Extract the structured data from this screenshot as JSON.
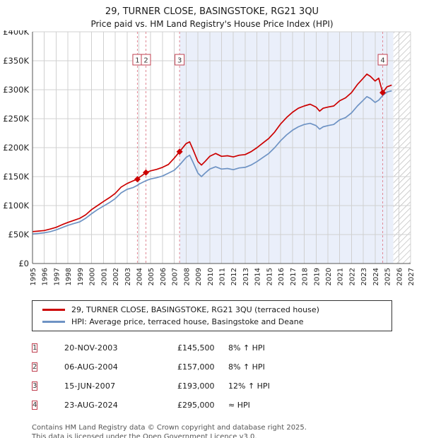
{
  "header": {
    "title": "29, TURNER CLOSE, BASINGSTOKE, RG21 3QU",
    "subtitle": "Price paid vs. HM Land Registry's House Price Index (HPI)"
  },
  "chart_data": {
    "type": "line",
    "xlim": [
      1995,
      2027
    ],
    "ylim": [
      0,
      400000
    ],
    "x_ticks": [
      1995,
      1996,
      1997,
      1998,
      1999,
      2000,
      2001,
      2002,
      2003,
      2004,
      2005,
      2006,
      2007,
      2008,
      2009,
      2010,
      2011,
      2012,
      2013,
      2014,
      2015,
      2016,
      2017,
      2018,
      2019,
      2020,
      2021,
      2022,
      2023,
      2024,
      2025,
      2026,
      2027
    ],
    "y_ticks": [
      0,
      50000,
      100000,
      150000,
      200000,
      250000,
      300000,
      350000,
      400000
    ],
    "y_tick_labels": [
      "£0",
      "£50K",
      "£100K",
      "£150K",
      "£200K",
      "£250K",
      "£300K",
      "£350K",
      "£400K"
    ],
    "grid": true,
    "grid_color": "#d0d0d0",
    "shaded_region": {
      "from": 2007.45,
      "to": 2025.55,
      "color": "#eaeffa"
    },
    "hatched_region": {
      "from": 2025.55,
      "to": 2027,
      "line_color": "#b0b0b0"
    },
    "sale_line_color": "#e08894",
    "marker_color": "#cc0000",
    "x": [
      1995,
      1995.5,
      1996,
      1996.5,
      1997,
      1997.5,
      1998,
      1998.5,
      1999,
      1999.5,
      2000,
      2000.5,
      2001,
      2001.5,
      2002,
      2002.5,
      2003,
      2003.5,
      2003.88,
      2004,
      2004.6,
      2005,
      2005.5,
      2006,
      2006.5,
      2007,
      2007.45,
      2008,
      2008.3,
      2008.6,
      2009,
      2009.3,
      2009.6,
      2010,
      2010.5,
      2011,
      2011.5,
      2012,
      2012.5,
      2013,
      2013.5,
      2014,
      2014.5,
      2015,
      2015.5,
      2016,
      2016.5,
      2017,
      2017.5,
      2018,
      2018.5,
      2019,
      2019.3,
      2019.6,
      2020,
      2020.5,
      2021,
      2021.5,
      2022,
      2022.5,
      2023,
      2023.3,
      2023.6,
      2024,
      2024.3,
      2024.64,
      2025,
      2025.4
    ],
    "series": [
      {
        "name": "29, TURNER CLOSE, BASINGSTOKE, RG21 3QU (terraced house)",
        "color": "#cc0000",
        "values": [
          55000,
          56000,
          57000,
          59500,
          62500,
          67000,
          71000,
          74500,
          78000,
          84000,
          93000,
          100000,
          107000,
          113500,
          121000,
          132000,
          138000,
          142500,
          145500,
          148000,
          157000,
          160000,
          162500,
          166000,
          171000,
          182000,
          193000,
          207000,
          210000,
          196000,
          176000,
          170000,
          176000,
          185000,
          190000,
          185000,
          186000,
          184000,
          187000,
          188000,
          193000,
          200000,
          208000,
          216000,
          227000,
          241000,
          252000,
          261000,
          268000,
          272000,
          275000,
          270000,
          263000,
          268000,
          270000,
          272000,
          281000,
          286000,
          295000,
          309000,
          320000,
          327000,
          323000,
          315000,
          320000,
          295000,
          305000,
          308000
        ]
      },
      {
        "name": "HPI: Average price, terraced house, Basingstoke and Deane",
        "color": "#6e93c4",
        "values": [
          51000,
          52000,
          53000,
          55000,
          58000,
          62000,
          66000,
          69000,
          72000,
          78000,
          86000,
          93000,
          99000,
          105000,
          112000,
          122000,
          128000,
          131000,
          135000,
          137000,
          143000,
          146000,
          148000,
          151000,
          156000,
          161000,
          170000,
          183000,
          187000,
          174000,
          156000,
          150000,
          156000,
          163000,
          167000,
          163000,
          164000,
          162000,
          165000,
          166000,
          170000,
          176000,
          183000,
          190000,
          200000,
          212000,
          222000,
          230000,
          236000,
          240000,
          242000,
          238000,
          232000,
          236000,
          238000,
          240000,
          248000,
          252000,
          260000,
          272000,
          282000,
          288000,
          285000,
          278000,
          282000,
          290000,
          296000,
          298000
        ]
      }
    ],
    "sales": [
      {
        "label": "1",
        "x": 2003.88,
        "price": 145500
      },
      {
        "label": "2",
        "x": 2004.6,
        "price": 157000
      },
      {
        "label": "3",
        "x": 2007.45,
        "price": 193000
      },
      {
        "label": "4",
        "x": 2024.64,
        "price": 295000
      }
    ]
  },
  "legend": {
    "items": [
      {
        "label": "29, TURNER CLOSE, BASINGSTOKE, RG21 3QU (terraced house)",
        "color": "#cc0000"
      },
      {
        "label": "HPI: Average price, terraced house, Basingstoke and Deane",
        "color": "#6e93c4"
      }
    ]
  },
  "transactions": [
    {
      "num": "1",
      "date": "20-NOV-2003",
      "price": "£145,500",
      "hpi": "8% ↑ HPI"
    },
    {
      "num": "2",
      "date": "06-AUG-2004",
      "price": "£157,000",
      "hpi": "8% ↑ HPI"
    },
    {
      "num": "3",
      "date": "15-JUN-2007",
      "price": "£193,000",
      "hpi": "12% ↑ HPI"
    },
    {
      "num": "4",
      "date": "23-AUG-2024",
      "price": "£295,000",
      "hpi": "≈ HPI"
    }
  ],
  "footer": {
    "line1": "Contains HM Land Registry data © Crown copyright and database right 2025.",
    "line2": "This data is licensed under the Open Government Licence v3.0."
  }
}
